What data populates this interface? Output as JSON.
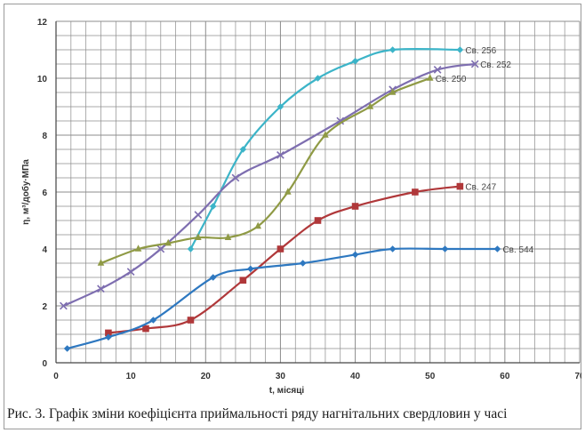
{
  "caption": "Рис. 3. Графік зміни коефіцієнта приймальності ряду нагнітальних свердловин у часі",
  "chart_data": {
    "type": "line",
    "title": "",
    "xlabel": "t, місяці",
    "ylabel": "η, м³/добу·МПа",
    "xlim": [
      0,
      70
    ],
    "ylim": [
      0,
      12
    ],
    "xticks": [
      0,
      10,
      20,
      30,
      40,
      50,
      60,
      70
    ],
    "yticks": [
      0,
      2,
      4,
      6,
      8,
      10,
      12
    ],
    "grid": true,
    "legend": "inline labels at line ends",
    "series": [
      {
        "name": "Св. 256",
        "color": "#3cb4c8",
        "marker": "diamond",
        "points": [
          [
            18,
            4.0
          ],
          [
            21,
            5.5
          ],
          [
            25,
            7.5
          ],
          [
            30,
            9.0
          ],
          [
            35,
            10.0
          ],
          [
            40,
            10.6
          ],
          [
            45,
            11.0
          ],
          [
            54,
            11.0
          ]
        ],
        "label_at": [
          54,
          11.0
        ]
      },
      {
        "name": "Св. 252",
        "color": "#7e6eb0",
        "marker": "x",
        "points": [
          [
            1,
            2.0
          ],
          [
            6,
            2.6
          ],
          [
            10,
            3.2
          ],
          [
            14,
            4.0
          ],
          [
            19,
            5.2
          ],
          [
            24,
            6.5
          ],
          [
            30,
            7.3
          ],
          [
            38,
            8.5
          ],
          [
            45,
            9.6
          ],
          [
            51,
            10.3
          ],
          [
            56,
            10.5
          ]
        ],
        "label_at": [
          56,
          10.5
        ]
      },
      {
        "name": "Св. 250",
        "color": "#8f9a45",
        "marker": "triangle",
        "points": [
          [
            6,
            3.5
          ],
          [
            11,
            4.0
          ],
          [
            15,
            4.2
          ],
          [
            19,
            4.4
          ],
          [
            23,
            4.4
          ],
          [
            27,
            4.8
          ],
          [
            31,
            6.0
          ],
          [
            36,
            8.0
          ],
          [
            42,
            9.0
          ],
          [
            45,
            9.5
          ],
          [
            50,
            10.0
          ]
        ],
        "label_at": [
          50,
          10.0
        ]
      },
      {
        "name": "Св. 247",
        "color": "#b0383a",
        "marker": "square",
        "points": [
          [
            7,
            1.05
          ],
          [
            12,
            1.2
          ],
          [
            18,
            1.5
          ],
          [
            25,
            2.9
          ],
          [
            30,
            4.0
          ],
          [
            35,
            5.0
          ],
          [
            40,
            5.5
          ],
          [
            48,
            6.0
          ],
          [
            54,
            6.2
          ]
        ],
        "label_at": [
          54,
          6.2
        ]
      },
      {
        "name": "Св. 544",
        "color": "#2e78c0",
        "marker": "diamond",
        "points": [
          [
            1.5,
            0.5
          ],
          [
            7,
            0.9
          ],
          [
            13,
            1.5
          ],
          [
            21,
            3.0
          ],
          [
            26,
            3.3
          ],
          [
            33,
            3.5
          ],
          [
            40,
            3.8
          ],
          [
            45,
            4.0
          ],
          [
            52,
            4.0
          ],
          [
            59,
            4.0
          ]
        ],
        "label_at": [
          59,
          4.0
        ]
      }
    ]
  }
}
